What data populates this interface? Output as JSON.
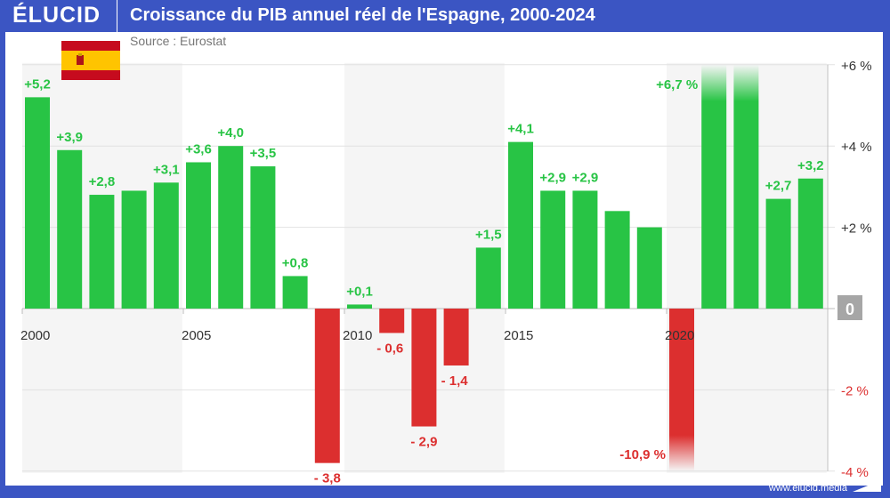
{
  "header": {
    "logo": "ÉLUCID",
    "title": "Croissance du PIB annuel réel de l'Espagne, 2000-2024"
  },
  "source": "Source : Eurostat",
  "footer": "www.elucid.media",
  "colors": {
    "frame": "#3b55c3",
    "positive": "#28c445",
    "negative": "#dc2f2f",
    "zero_box": "#a6a6a6"
  },
  "chart_data": {
    "type": "bar",
    "title": "Croissance du PIB annuel réel de l'Espagne, 2000-2024",
    "categories": [
      2000,
      2001,
      2002,
      2003,
      2004,
      2005,
      2006,
      2007,
      2008,
      2009,
      2010,
      2011,
      2012,
      2013,
      2014,
      2015,
      2016,
      2017,
      2018,
      2019,
      2020,
      2021,
      2022,
      2023,
      2024
    ],
    "values": [
      5.2,
      3.9,
      2.8,
      2.9,
      3.1,
      3.6,
      4.0,
      3.5,
      0.8,
      -3.8,
      0.1,
      -0.6,
      -2.9,
      -1.4,
      1.5,
      4.1,
      2.9,
      2.9,
      2.4,
      2.0,
      -10.9,
      6.7,
      6.2,
      2.7,
      3.2
    ],
    "data_labels": [
      "+5,2",
      "+3,9",
      "+2,8",
      "",
      "+3,1",
      "+3,6",
      "+4,0",
      "+3,5",
      "+0,8",
      "- 3,8",
      "+0,1",
      "- 0,6",
      "- 2,9",
      "- 1,4",
      "+1,5",
      "+4,1",
      "+2,9",
      "+2,9",
      "",
      "",
      "-10,9 %",
      "+6,7 %",
      "",
      "+2,7",
      "+3,2"
    ],
    "x_tick_labels": [
      "2000",
      "2005",
      "2010",
      "2015",
      "2020"
    ],
    "y_tick_labels": [
      "+6 %",
      "+4 %",
      "+2 %",
      "0",
      "-2 %",
      "-4 %"
    ],
    "y_ticks": [
      6,
      4,
      2,
      0,
      -2,
      -4
    ],
    "ylim": [
      -4,
      6
    ],
    "truncated_bars": [
      2020,
      2021,
      2022
    ],
    "y_axis_position": "right",
    "grid": true,
    "shaded_periods": [
      [
        2000,
        2004
      ],
      [
        2010,
        2014
      ],
      [
        2020,
        2024
      ]
    ]
  }
}
